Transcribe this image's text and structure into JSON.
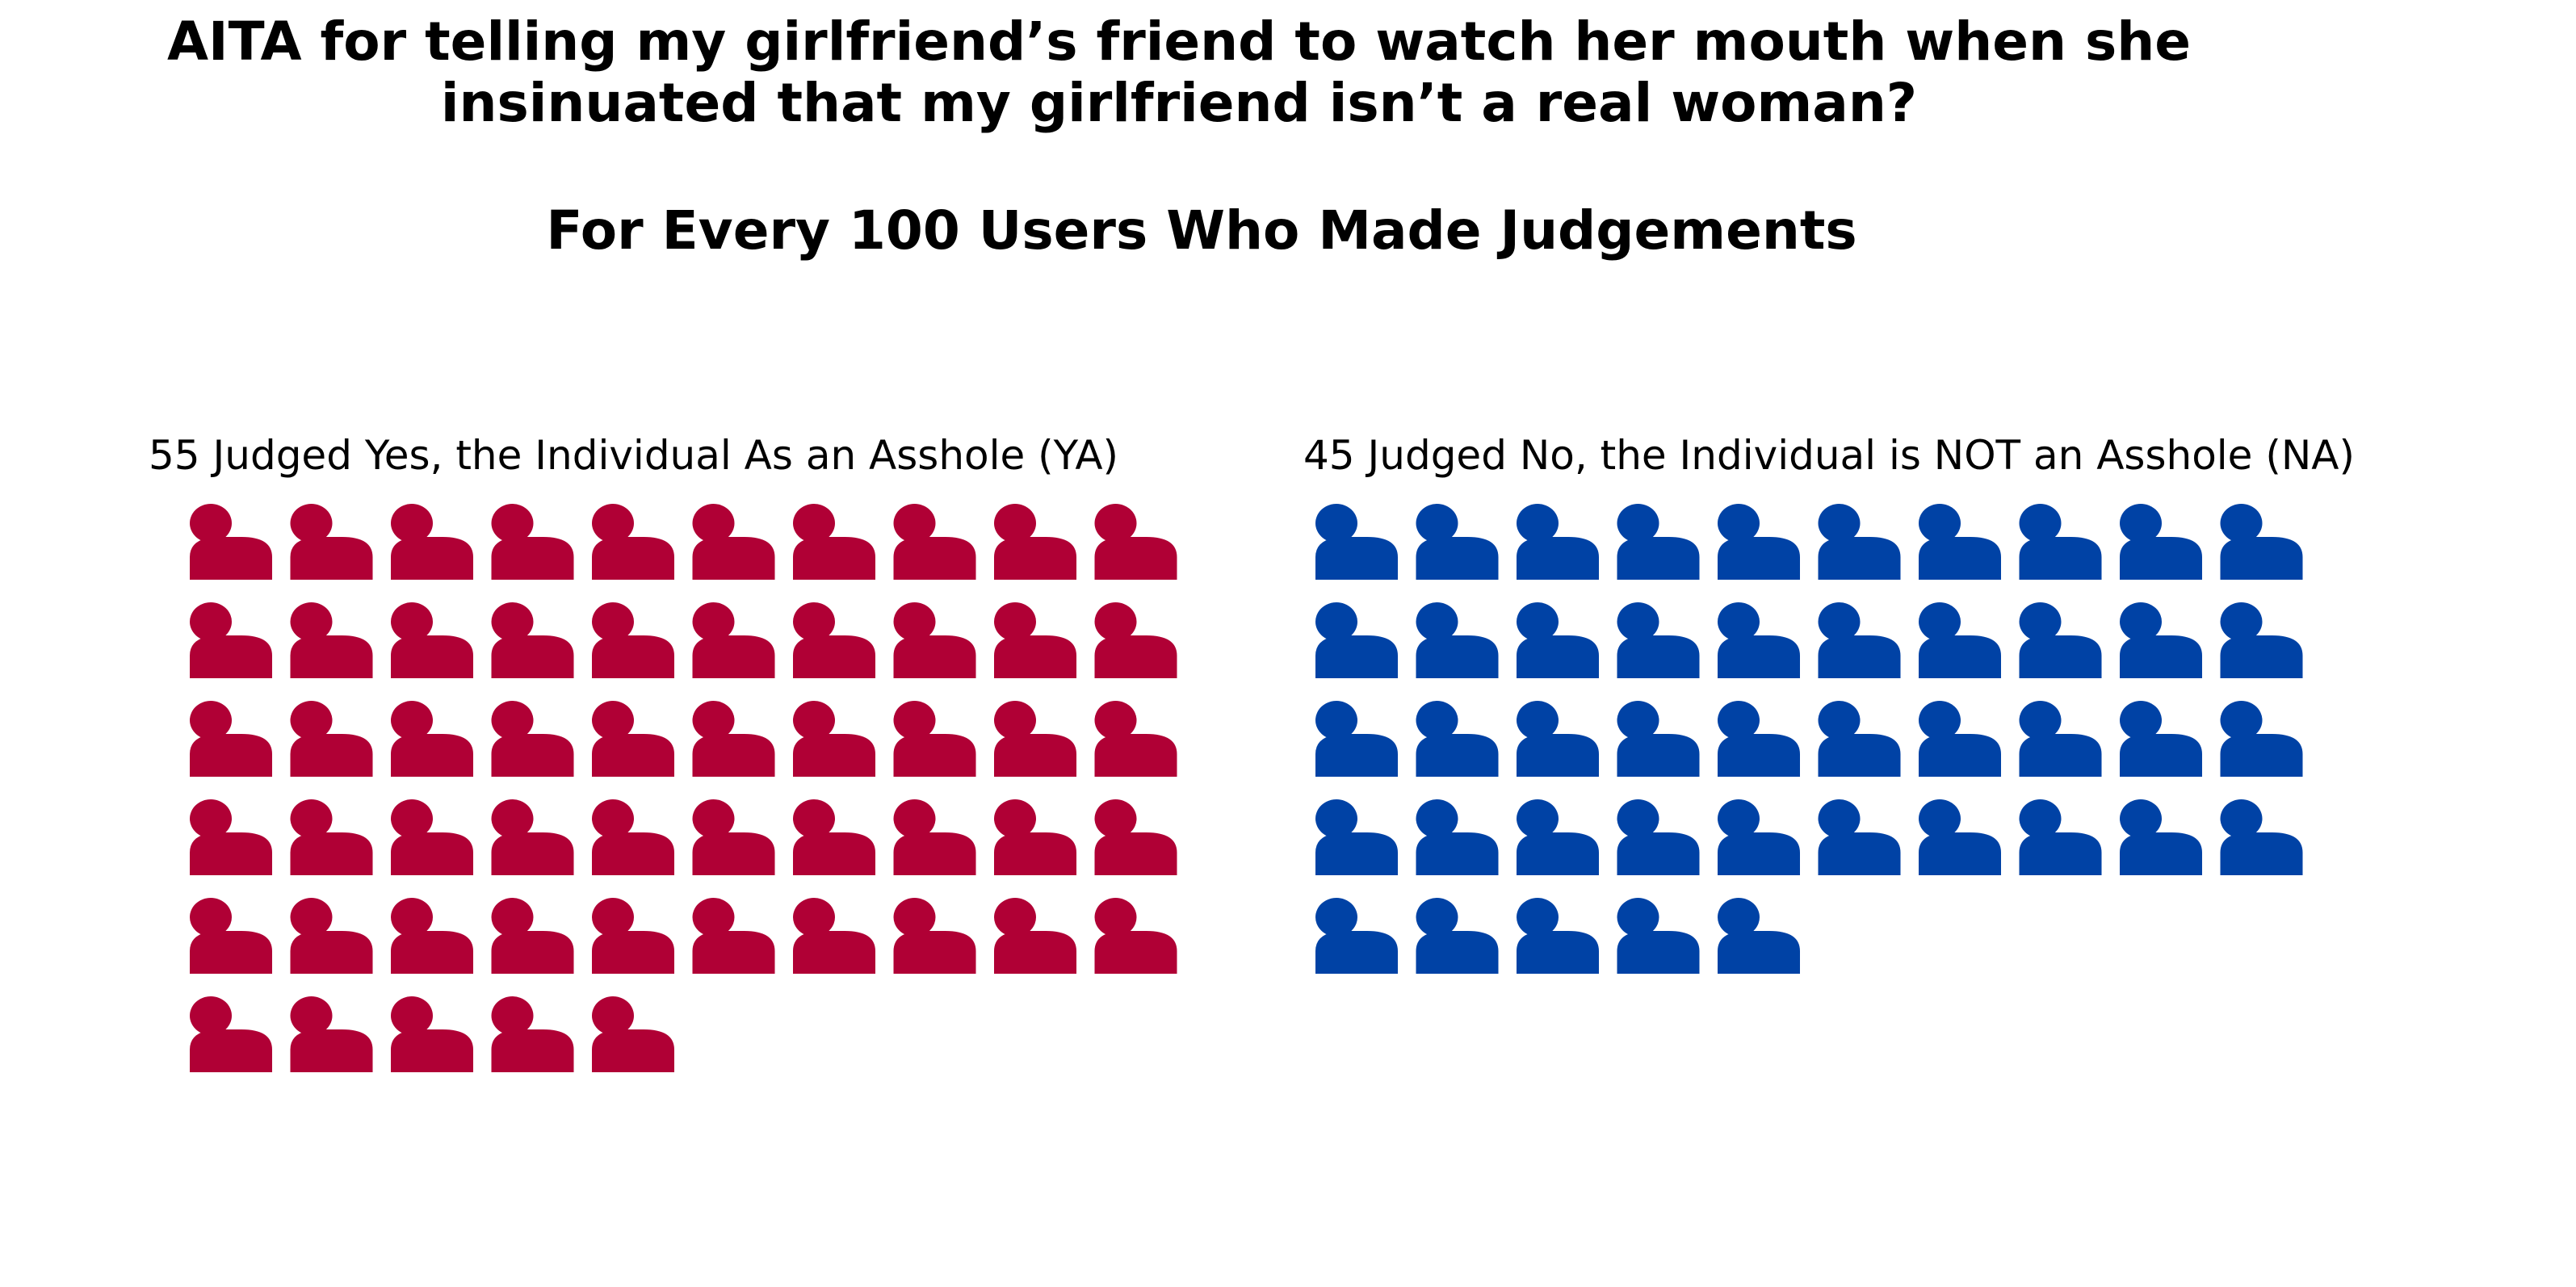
{
  "chart_data": {
    "type": "pictogram",
    "title": "AITA for telling my girlfriend’s friend to watch her mouth when she insinuated that my girlfriend isn’t a real woman?",
    "subtitle": "For Every 100 Users Who Made Judgements",
    "icons_per_row": 10,
    "icon": "person-icon",
    "panels": [
      {
        "id": "ya",
        "label": "55 Judged Yes, the Individual As an Asshole (YA)",
        "count": 55,
        "color": "#b00035"
      },
      {
        "id": "na",
        "label": "45 Judged No, the Individual is NOT an Asshole (NA)",
        "count": 45,
        "color": "#0042a5"
      }
    ]
  }
}
